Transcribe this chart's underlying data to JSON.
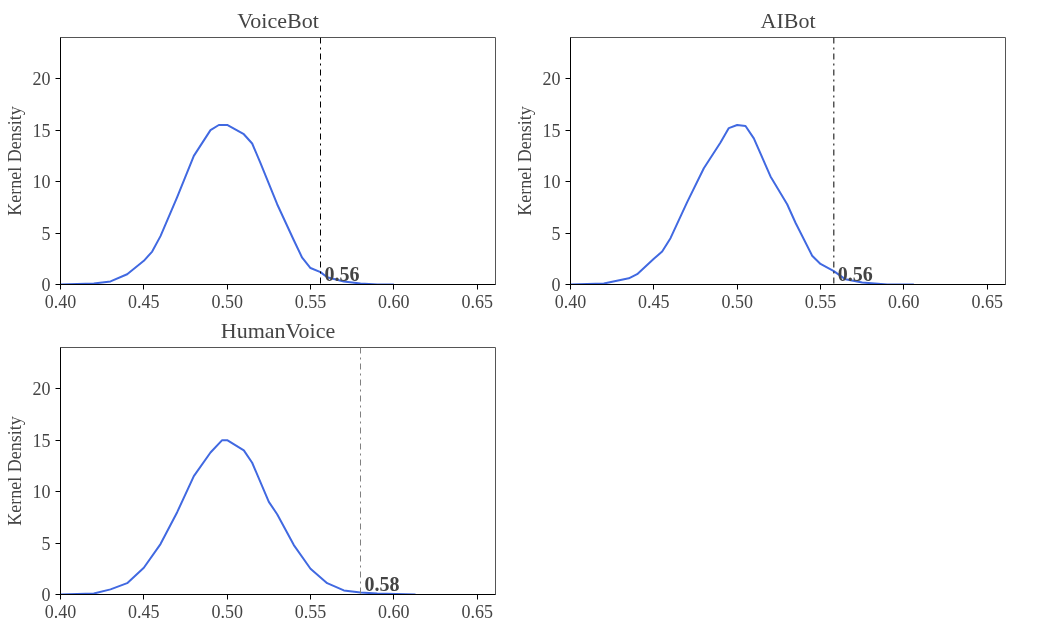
{
  "chart_data": [
    {
      "type": "line",
      "title": "VoiceBot",
      "ylabel": "Kernel Density",
      "xlim": [
        0.4,
        0.661
      ],
      "ylim": [
        0,
        24
      ],
      "xticks": [
        {
          "value": 0.4,
          "label": "0.40"
        },
        0.45,
        {
          "value": 0.5,
          "label": "0.50"
        },
        0.55,
        {
          "value": 0.6,
          "label": "0.60"
        },
        0.65
      ],
      "yticks": [
        0,
        5,
        10,
        15,
        20
      ],
      "grid": false,
      "marker": "none",
      "line_style": "solid",
      "series": [
        {
          "color": "#4169e1",
          "x": [
            0.4,
            0.42,
            0.43,
            0.44,
            0.45,
            0.455,
            0.46,
            0.47,
            0.48,
            0.49,
            0.495,
            0.5,
            0.51,
            0.515,
            0.52,
            0.53,
            0.54,
            0.545,
            0.55,
            0.556,
            0.56,
            0.57,
            0.58,
            0.59,
            0.6
          ],
          "values": [
            0,
            0.1,
            0.3,
            1.0,
            2.3,
            3.2,
            4.7,
            8.5,
            12.5,
            15.0,
            15.5,
            15.5,
            14.6,
            13.7,
            11.8,
            7.8,
            4.3,
            2.6,
            1.6,
            1.2,
            0.7,
            0.3,
            0.1,
            0,
            0
          ]
        }
      ],
      "ref_lines": [
        {
          "axis": "x",
          "value": 0.556,
          "label": "0.56",
          "color": "#000000",
          "line_style": "dashdot"
        }
      ]
    },
    {
      "type": "line",
      "title": "AIBot",
      "ylabel": "Kernel Density",
      "xlim": [
        0.4,
        0.661
      ],
      "ylim": [
        0,
        24
      ],
      "xticks": [
        {
          "value": 0.4,
          "label": "0.40"
        },
        0.45,
        {
          "value": 0.5,
          "label": "0.50"
        },
        0.55,
        {
          "value": 0.6,
          "label": "0.60"
        },
        0.65
      ],
      "yticks": [
        0,
        5,
        10,
        15,
        20
      ],
      "grid": false,
      "marker": "none",
      "line_style": "solid",
      "series": [
        {
          "color": "#4169e1",
          "x": [
            0.4,
            0.42,
            0.435,
            0.44,
            0.45,
            0.455,
            0.46,
            0.47,
            0.48,
            0.49,
            0.495,
            0.5,
            0.505,
            0.51,
            0.52,
            0.53,
            0.535,
            0.545,
            0.55,
            0.558,
            0.565,
            0.575,
            0.59,
            0.606
          ],
          "values": [
            0,
            0.1,
            0.6,
            1.0,
            2.5,
            3.2,
            4.5,
            8.0,
            11.3,
            13.8,
            15.2,
            15.5,
            15.4,
            14.2,
            10.5,
            7.8,
            6.0,
            2.8,
            2.0,
            1.3,
            0.5,
            0.2,
            0,
            0
          ]
        }
      ],
      "ref_lines": [
        {
          "axis": "x",
          "value": 0.558,
          "label": "0.56",
          "color": "#000000",
          "line_style": "dashdot"
        }
      ]
    },
    {
      "type": "line",
      "title": "HumanVoice",
      "ylabel": "Kernel Density",
      "xlim": [
        0.4,
        0.661
      ],
      "ylim": [
        0,
        24
      ],
      "xticks": [
        {
          "value": 0.4,
          "label": "0.40"
        },
        0.45,
        {
          "value": 0.5,
          "label": "0.50"
        },
        0.55,
        {
          "value": 0.6,
          "label": "0.60"
        },
        0.65
      ],
      "yticks": [
        0,
        5,
        10,
        15,
        20
      ],
      "grid": false,
      "marker": "none",
      "line_style": "solid",
      "series": [
        {
          "color": "#4169e1",
          "x": [
            0.4,
            0.42,
            0.43,
            0.44,
            0.45,
            0.46,
            0.47,
            0.48,
            0.49,
            0.497,
            0.5,
            0.51,
            0.515,
            0.525,
            0.53,
            0.54,
            0.55,
            0.56,
            0.57,
            0.58,
            0.59,
            0.613
          ],
          "values": [
            0,
            0.1,
            0.5,
            1.1,
            2.6,
            4.9,
            8.0,
            11.5,
            13.8,
            15.0,
            15.0,
            14.0,
            12.8,
            9.0,
            7.8,
            4.8,
            2.5,
            1.1,
            0.4,
            0.2,
            0.1,
            0
          ]
        }
      ],
      "ref_lines": [
        {
          "axis": "x",
          "value": 0.58,
          "label": "0.58",
          "color": "#808080",
          "line_style": "dashdot"
        }
      ]
    }
  ]
}
